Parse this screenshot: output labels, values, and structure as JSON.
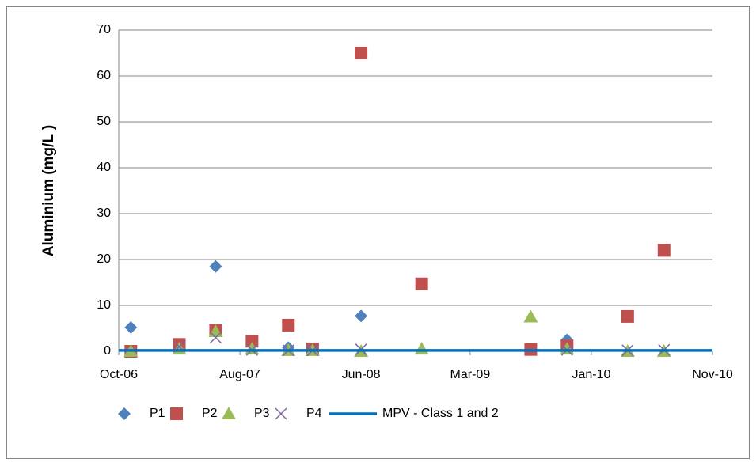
{
  "chart_data": {
    "type": "scatter",
    "y_label": "Aluminium (mg/L )",
    "xlim": [
      "2006-10",
      "2010-11"
    ],
    "xticks": [
      {
        "value": "2006-10",
        "label": "Oct-06"
      },
      {
        "value": "2007-08",
        "label": "Aug-07"
      },
      {
        "value": "2008-06",
        "label": "Jun-08"
      },
      {
        "value": "2009-03",
        "label": "Mar-09"
      },
      {
        "value": "2010-01",
        "label": "Jan-10"
      },
      {
        "value": "2010-11",
        "label": "Nov-10"
      }
    ],
    "ylim": [
      0,
      70
    ],
    "yticks": [
      0,
      10,
      20,
      30,
      40,
      50,
      60,
      70
    ],
    "grid": true,
    "legend": "bottom",
    "series": [
      {
        "name": "P1",
        "marker": "diamond",
        "color": "#4f81bd",
        "x": [
          "2006-11",
          "2007-06",
          "2007-12",
          "2008-06",
          "2009-11"
        ],
        "values": [
          5.2,
          18.5,
          0.8,
          7.7,
          2.5
        ]
      },
      {
        "name": "P2",
        "marker": "square",
        "color": "#c0504d",
        "x": [
          "2006-11",
          "2007-03",
          "2007-06",
          "2007-09",
          "2007-12",
          "2008-02",
          "2008-06",
          "2008-11",
          "2009-08",
          "2009-11",
          "2010-04",
          "2010-07"
        ],
        "values": [
          0,
          1.5,
          4.5,
          2.2,
          5.7,
          0.5,
          65,
          14.7,
          0.4,
          1.2,
          7.6,
          22
        ]
      },
      {
        "name": "P3",
        "marker": "triangle",
        "color": "#9bbb59",
        "x": [
          "2006-11",
          "2007-03",
          "2007-06",
          "2007-09",
          "2007-12",
          "2008-02",
          "2008-06",
          "2008-11",
          "2009-08",
          "2009-11",
          "2010-04",
          "2010-07"
        ],
        "values": [
          0,
          0.5,
          4.3,
          0.5,
          0.2,
          0.2,
          0,
          0.5,
          7.5,
          0.5,
          0,
          0
        ]
      },
      {
        "name": "P4",
        "marker": "x",
        "color": "#8064a2",
        "x": [
          "2007-03",
          "2007-06",
          "2007-09",
          "2007-12",
          "2008-02",
          "2008-06",
          "2009-11",
          "2010-04",
          "2010-07"
        ],
        "values": [
          1,
          3,
          0.3,
          0.2,
          0.2,
          0.4,
          0.3,
          0.2,
          0.3
        ]
      },
      {
        "name": "MPV - Class 1 and 2",
        "marker": "line",
        "color": "#0070c0",
        "x": [
          "2006-10",
          "2010-11"
        ],
        "values": [
          0.2,
          0.2
        ]
      }
    ]
  }
}
